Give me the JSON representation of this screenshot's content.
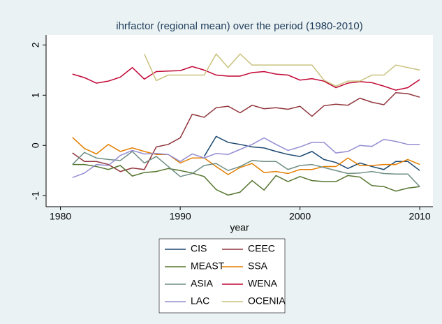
{
  "chart_data": {
    "type": "line",
    "title": "ihrfactor (regional mean) over the period (1980-2010)",
    "x_label": "year",
    "x": [
      1981,
      1982,
      1983,
      1984,
      1985,
      1986,
      1987,
      1988,
      1989,
      1990,
      1991,
      1992,
      1993,
      1994,
      1995,
      1996,
      1997,
      1998,
      1999,
      2000,
      2001,
      2002,
      2003,
      2004,
      2005,
      2006,
      2007,
      2008,
      2009,
      2010
    ],
    "xlim": [
      1978.8,
      2011.1
    ],
    "xticks": [
      1980,
      1990,
      2000,
      2010
    ],
    "ylim": [
      -1.22,
      2.2
    ],
    "yticks": [
      -1,
      0,
      1,
      2
    ],
    "grid": false,
    "legend_position": "bottom",
    "series": [
      {
        "name": "CIS",
        "color": "#1a476f",
        "values": [
          null,
          null,
          null,
          null,
          null,
          null,
          null,
          null,
          null,
          null,
          null,
          -0.22,
          0.18,
          0.06,
          0.02,
          -0.03,
          -0.05,
          -0.12,
          -0.18,
          -0.22,
          -0.12,
          -0.28,
          -0.34,
          -0.46,
          -0.35,
          -0.42,
          -0.48,
          -0.32,
          -0.32,
          -0.5
        ]
      },
      {
        "name": "CEEC",
        "color": "#90353b",
        "values": [
          -0.15,
          -0.32,
          -0.32,
          -0.38,
          -0.52,
          -0.45,
          -0.48,
          -0.03,
          0.02,
          0.15,
          0.62,
          0.56,
          0.75,
          0.78,
          0.65,
          0.8,
          0.73,
          0.75,
          0.72,
          0.78,
          0.58,
          0.79,
          0.82,
          0.8,
          0.94,
          0.86,
          0.81,
          1.05,
          1.03,
          0.96
        ]
      },
      {
        "name": "MEAST",
        "color": "#55752f",
        "values": [
          -0.38,
          -0.38,
          -0.42,
          -0.48,
          -0.4,
          -0.61,
          -0.54,
          -0.52,
          -0.46,
          -0.5,
          -0.55,
          -0.62,
          -0.88,
          -0.99,
          -0.93,
          -0.7,
          -0.89,
          -0.6,
          -0.72,
          -0.62,
          -0.7,
          -0.72,
          -0.72,
          -0.6,
          -0.63,
          -0.8,
          -0.82,
          -0.91,
          -0.85,
          -0.82
        ]
      },
      {
        "name": "SSA",
        "color": "#e37e00",
        "values": [
          0.16,
          -0.06,
          -0.17,
          0.02,
          -0.12,
          -0.05,
          -0.12,
          -0.18,
          -0.18,
          -0.35,
          -0.25,
          -0.25,
          -0.42,
          -0.58,
          -0.44,
          -0.36,
          -0.54,
          -0.52,
          -0.56,
          -0.48,
          -0.48,
          -0.42,
          -0.42,
          -0.25,
          -0.4,
          -0.4,
          -0.38,
          -0.38,
          -0.28,
          -0.38
        ]
      },
      {
        "name": "ASIA",
        "color": "#6e8e84",
        "values": [
          -0.38,
          -0.14,
          -0.25,
          -0.28,
          -0.3,
          -0.12,
          -0.35,
          -0.22,
          -0.42,
          -0.62,
          -0.56,
          -0.4,
          -0.36,
          -0.5,
          -0.42,
          -0.3,
          -0.32,
          -0.32,
          -0.48,
          -0.4,
          -0.38,
          -0.44,
          -0.5,
          -0.56,
          -0.55,
          -0.52,
          -0.56,
          -0.57,
          -0.57,
          -0.82
        ]
      },
      {
        "name": "WENA",
        "color": "#c10534",
        "values": [
          1.42,
          1.35,
          1.24,
          1.28,
          1.36,
          1.55,
          1.32,
          1.47,
          1.48,
          1.49,
          1.57,
          1.5,
          1.4,
          1.38,
          1.38,
          1.45,
          1.47,
          1.42,
          1.4,
          1.3,
          1.33,
          1.28,
          1.15,
          1.24,
          1.27,
          1.25,
          1.18,
          1.1,
          1.15,
          1.31
        ]
      },
      {
        "name": "LAC",
        "color": "#938dd2",
        "values": [
          -0.64,
          -0.55,
          -0.38,
          -0.4,
          -0.2,
          -0.1,
          -0.17,
          -0.16,
          -0.18,
          -0.32,
          -0.17,
          -0.25,
          -0.16,
          -0.18,
          -0.08,
          0.02,
          0.15,
          0.02,
          -0.1,
          -0.03,
          0.06,
          0.06,
          -0.15,
          -0.12,
          0.0,
          -0.02,
          0.12,
          0.08,
          0.02,
          0.02
        ]
      },
      {
        "name": "OCENIA",
        "color": "#cac27e",
        "values": [
          null,
          null,
          null,
          null,
          null,
          null,
          1.82,
          1.29,
          1.4,
          1.4,
          1.4,
          1.4,
          1.82,
          1.55,
          1.82,
          1.6,
          1.6,
          1.6,
          1.6,
          1.6,
          1.6,
          1.3,
          1.18,
          1.28,
          1.28,
          1.4,
          1.4,
          1.6,
          1.55,
          1.5
        ]
      }
    ]
  }
}
